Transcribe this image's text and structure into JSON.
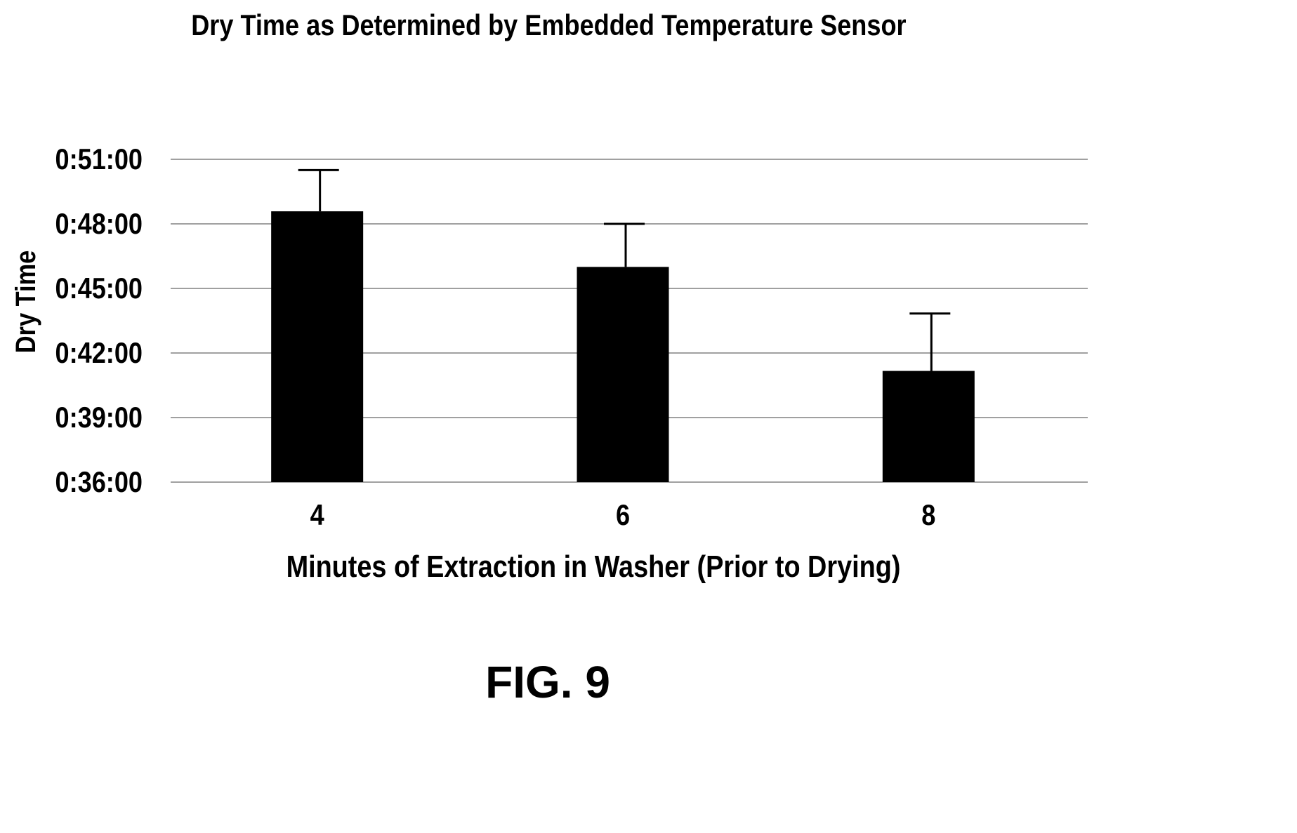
{
  "figure": {
    "label": "FIG. 9"
  },
  "chart_data": {
    "type": "bar",
    "title": "Dry Time as Determined by Embedded Temperature Sensor",
    "xlabel": "Minutes of Extraction in Washer (Prior to Drying)",
    "ylabel": "Dry Time",
    "categories": [
      "4",
      "6",
      "8"
    ],
    "values": [
      "0:48:35",
      "0:46:00",
      "0:41:10"
    ],
    "error_upper": [
      "0:50:30",
      "0:48:00",
      "0:43:50"
    ],
    "ylim": [
      "0:36:00",
      "0:51:00"
    ],
    "yticks": [
      "0:36:00",
      "0:39:00",
      "0:42:00",
      "0:45:00",
      "0:48:00",
      "0:51:00"
    ],
    "grid": true,
    "legend": "none",
    "colors": {
      "bar": "#000000",
      "grid": "#808080",
      "errorbar": "#000000"
    }
  }
}
